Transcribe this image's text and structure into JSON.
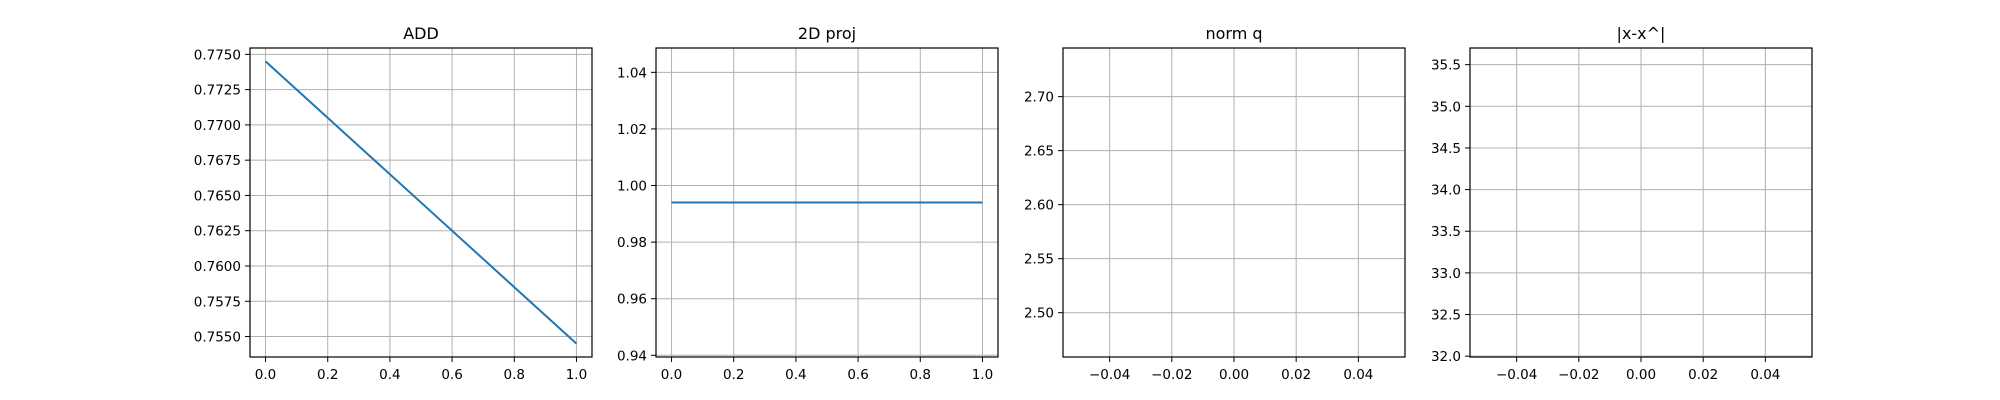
{
  "chart_data": [
    {
      "type": "line",
      "title": "ADD",
      "xlabel": "",
      "ylabel": "",
      "grid": true,
      "xlim": [
        -0.05,
        1.05
      ],
      "ylim": [
        0.75355,
        0.77545
      ],
      "xticks": [
        0.0,
        0.2,
        0.4,
        0.6,
        0.8,
        1.0
      ],
      "xtick_labels": [
        "0.0",
        "0.2",
        "0.4",
        "0.6",
        "0.8",
        "1.0"
      ],
      "yticks": [
        0.755,
        0.7575,
        0.76,
        0.7625,
        0.765,
        0.7675,
        0.77,
        0.7725,
        0.775
      ],
      "ytick_labels": [
        "0.7550",
        "0.7575",
        "0.7600",
        "0.7625",
        "0.7650",
        "0.7675",
        "0.7700",
        "0.7725",
        "0.7750"
      ],
      "series": [
        {
          "color": "#1f77b4",
          "x": [
            0.0,
            1.0
          ],
          "y": [
            0.7745,
            0.7545
          ]
        }
      ]
    },
    {
      "type": "line",
      "title": "2D proj",
      "xlabel": "",
      "ylabel": "",
      "grid": true,
      "xlim": [
        -0.05,
        1.05
      ],
      "ylim": [
        0.9394,
        1.0486
      ],
      "xticks": [
        0.0,
        0.2,
        0.4,
        0.6,
        0.8,
        1.0
      ],
      "xtick_labels": [
        "0.0",
        "0.2",
        "0.4",
        "0.6",
        "0.8",
        "1.0"
      ],
      "yticks": [
        0.94,
        0.96,
        0.98,
        1.0,
        1.02,
        1.04
      ],
      "ytick_labels": [
        "0.94",
        "0.96",
        "0.98",
        "1.00",
        "1.02",
        "1.04"
      ],
      "series": [
        {
          "color": "#1f77b4",
          "x": [
            0.0,
            1.0
          ],
          "y": [
            0.994,
            0.994
          ]
        }
      ]
    },
    {
      "type": "line",
      "title": "norm q",
      "xlabel": "",
      "ylabel": "",
      "grid": true,
      "xlim": [
        -0.055,
        0.055
      ],
      "ylim": [
        2.459,
        2.745
      ],
      "xticks": [
        -0.04,
        -0.02,
        0.0,
        0.02,
        0.04
      ],
      "xtick_labels": [
        "−0.04",
        "−0.02",
        "0.00",
        "0.02",
        "0.04"
      ],
      "yticks": [
        2.5,
        2.55,
        2.6,
        2.65,
        2.7
      ],
      "ytick_labels": [
        "2.50",
        "2.55",
        "2.60",
        "2.65",
        "2.70"
      ],
      "series": []
    },
    {
      "type": "line",
      "title": "|x-x^|",
      "xlabel": "",
      "ylabel": "",
      "grid": true,
      "xlim": [
        -0.055,
        0.055
      ],
      "ylim": [
        31.99,
        35.7
      ],
      "xticks": [
        -0.04,
        -0.02,
        0.0,
        0.02,
        0.04
      ],
      "xtick_labels": [
        "−0.04",
        "−0.02",
        "0.00",
        "0.02",
        "0.04"
      ],
      "yticks": [
        32.0,
        32.5,
        33.0,
        33.5,
        34.0,
        34.5,
        35.0,
        35.5
      ],
      "ytick_labels": [
        "32.0",
        "32.5",
        "33.0",
        "33.5",
        "34.0",
        "34.5",
        "35.0",
        "35.5"
      ],
      "series": []
    }
  ]
}
